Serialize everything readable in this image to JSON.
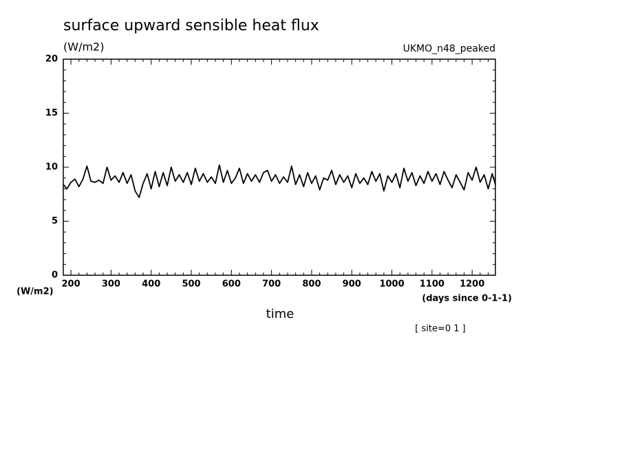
{
  "chart_data": {
    "type": "line",
    "title": "surface upward sensible heat flux",
    "ylabel": "(W/m2)",
    "ylabel_bottom": "(W/m2)",
    "model": "UKMO_n48_peaked",
    "xlabel": "time",
    "xunits": "(days since 0-1-1)",
    "annotation": "[ site=0 1 ]",
    "xlim": [
      181,
      1258
    ],
    "ylim": [
      0,
      20
    ],
    "xticks": [
      200,
      300,
      400,
      500,
      600,
      700,
      800,
      900,
      1000,
      1100,
      1200
    ],
    "yticks": [
      0,
      5,
      10,
      15,
      20
    ],
    "xminorticks": [
      220,
      240,
      260,
      280,
      320,
      340,
      360,
      380,
      420,
      440,
      460,
      480,
      520,
      540,
      560,
      580,
      620,
      640,
      660,
      680,
      720,
      740,
      760,
      780,
      820,
      840,
      860,
      880,
      920,
      940,
      960,
      980,
      1020,
      1040,
      1060,
      1080,
      1120,
      1140,
      1160,
      1180,
      1220,
      1240
    ],
    "yminorticks": [
      1,
      2,
      3,
      4,
      6,
      7,
      8,
      9,
      11,
      12,
      13,
      14,
      16,
      17,
      18,
      19
    ],
    "color": "#000000",
    "x": [
      181,
      190,
      200,
      210,
      220,
      230,
      240,
      250,
      260,
      270,
      280,
      290,
      300,
      310,
      320,
      330,
      340,
      350,
      360,
      370,
      380,
      390,
      400,
      410,
      420,
      430,
      440,
      450,
      460,
      470,
      480,
      490,
      500,
      510,
      520,
      530,
      540,
      550,
      560,
      570,
      580,
      590,
      600,
      610,
      620,
      630,
      640,
      650,
      660,
      670,
      680,
      690,
      700,
      710,
      720,
      730,
      740,
      750,
      760,
      770,
      780,
      790,
      800,
      810,
      820,
      830,
      840,
      850,
      860,
      870,
      880,
      890,
      900,
      910,
      920,
      930,
      940,
      950,
      960,
      970,
      980,
      990,
      1000,
      1010,
      1020,
      1030,
      1040,
      1050,
      1060,
      1070,
      1080,
      1090,
      1100,
      1110,
      1120,
      1130,
      1140,
      1150,
      1160,
      1170,
      1180,
      1190,
      1200,
      1210,
      1220,
      1230,
      1240,
      1250,
      1258
    ],
    "values": [
      8.4,
      8.0,
      8.6,
      8.9,
      8.2,
      8.9,
      10.1,
      8.7,
      8.6,
      8.8,
      8.5,
      10.0,
      8.8,
      9.2,
      8.6,
      9.5,
      8.5,
      9.3,
      7.8,
      7.2,
      8.5,
      9.4,
      8.0,
      9.6,
      8.2,
      9.5,
      8.3,
      10.0,
      8.7,
      9.3,
      8.6,
      9.5,
      8.4,
      9.9,
      8.7,
      9.4,
      8.6,
      9.1,
      8.5,
      10.2,
      8.6,
      9.7,
      8.5,
      9.0,
      9.9,
      8.5,
      9.4,
      8.7,
      9.3,
      8.6,
      9.5,
      9.7,
      8.7,
      9.3,
      8.5,
      9.1,
      8.6,
      10.1,
      8.4,
      9.3,
      8.2,
      9.5,
      8.5,
      9.2,
      7.9,
      9.0,
      8.8,
      9.7,
      8.4,
      9.3,
      8.6,
      9.2,
      8.1,
      9.4,
      8.5,
      9.0,
      8.4,
      9.6,
      8.7,
      9.4,
      7.8,
      9.2,
      8.6,
      9.4,
      8.1,
      9.9,
      8.7,
      9.5,
      8.3,
      9.2,
      8.5,
      9.6,
      8.7,
      9.4,
      8.4,
      9.6,
      8.8,
      8.1,
      9.3,
      8.6,
      7.9,
      9.5,
      8.8,
      10.0,
      8.6,
      9.3,
      8.0,
      9.4,
      8.4
    ]
  }
}
